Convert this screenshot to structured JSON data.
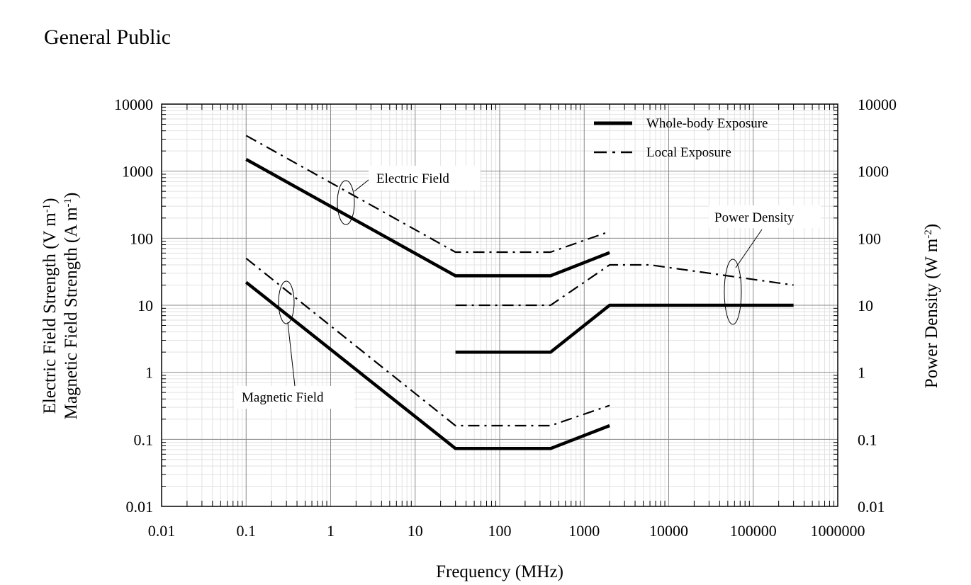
{
  "title": "General Public",
  "chart_data": {
    "type": "line",
    "x_scale": "log",
    "y_scale": "log",
    "xlim": [
      0.01,
      1000000
    ],
    "ylim": [
      0.01,
      10000
    ],
    "y2lim": [
      0.01,
      10000
    ],
    "grid": true,
    "xlabel": "Frequency (MHz)",
    "ylabel": {
      "line1": "Electric Field  Strength (V m",
      "line2": "Magnetic Field Strength (A m",
      "exp": "-1",
      "close": ")"
    },
    "y2label": {
      "base": "Power Density (W m",
      "exp": "-2",
      "close": ")"
    },
    "x_tick_labels": [
      "0.01",
      "0.1",
      "1",
      "10",
      "100",
      "1000",
      "10000",
      "100000",
      "1000000"
    ],
    "y_tick_labels": [
      "0.01",
      "0.1",
      "1",
      "10",
      "100",
      "1000",
      "10000"
    ],
    "y2_tick_labels": [
      "0.01",
      "0.1",
      "1",
      "10",
      "100",
      "1000",
      "10000"
    ],
    "legend": {
      "position": "top-right",
      "entries": [
        {
          "label": "Whole-body Exposure",
          "style": "solid"
        },
        {
          "label": "Local Exposure",
          "style": "dash-dot"
        }
      ]
    },
    "annotations": {
      "electric": "Electric Field",
      "magnetic": "Magnetic Field",
      "power": "Power Density"
    },
    "series": [
      {
        "group": "electric",
        "style": "solid",
        "x": [
          0.1,
          30,
          400,
          2000
        ],
        "y": [
          1500,
          27.5,
          27.5,
          61
        ]
      },
      {
        "group": "electric",
        "style": "dash-dot",
        "x": [
          0.1,
          30,
          400,
          1800
        ],
        "y": [
          3400,
          62,
          62,
          120
        ]
      },
      {
        "group": "magnetic",
        "style": "solid",
        "x": [
          0.1,
          30,
          400,
          2000
        ],
        "y": [
          22,
          0.073,
          0.073,
          0.16
        ]
      },
      {
        "group": "magnetic",
        "style": "dash-dot",
        "x": [
          0.1,
          30,
          400,
          2000
        ],
        "y": [
          50,
          0.16,
          0.16,
          0.32
        ]
      },
      {
        "group": "power",
        "style": "solid",
        "x": [
          30,
          400,
          2000,
          300000
        ],
        "y": [
          2,
          2,
          10,
          10
        ]
      },
      {
        "group": "power",
        "style": "dash-dot",
        "x": [
          30,
          400,
          2000,
          6000,
          300000
        ],
        "y": [
          10,
          10,
          40,
          40,
          20
        ]
      }
    ]
  }
}
